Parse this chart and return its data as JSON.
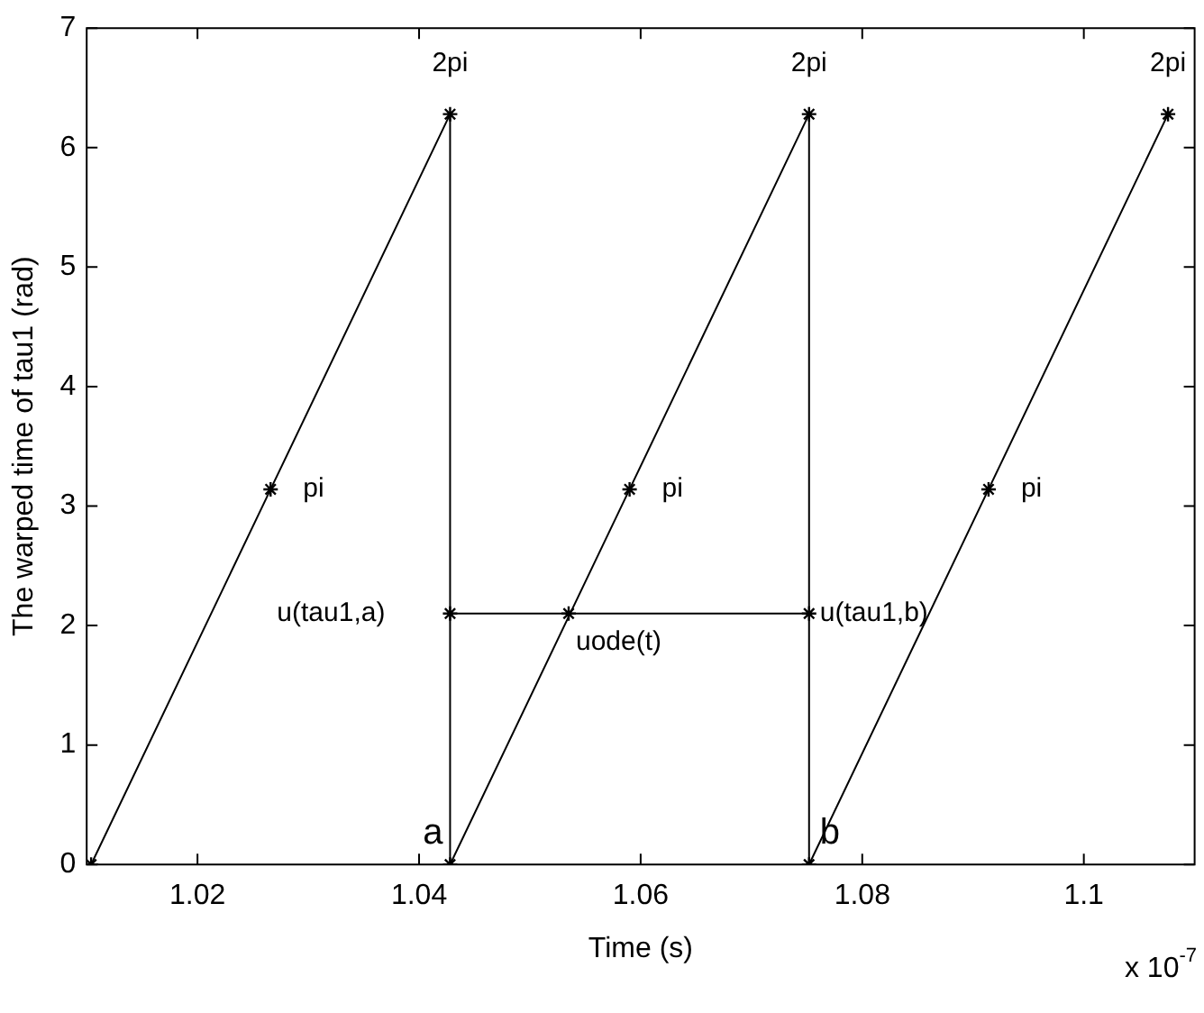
{
  "chart_data": {
    "type": "line",
    "xlabel": "Time (s)",
    "ylabel": "The warped time of tau1 (rad)",
    "xlim": [
      1.01,
      1.11
    ],
    "xticks": [
      1.02,
      1.04,
      1.06,
      1.08,
      1.1
    ],
    "ylim": [
      0,
      7
    ],
    "yticks": [
      0,
      1,
      2,
      3,
      4,
      5,
      6,
      7
    ],
    "grid": false,
    "legend": false,
    "marker": "cross",
    "line_style": "solid",
    "series": [
      {
        "color": "#000000",
        "x": [
          1.0104,
          1.0266,
          1.0428,
          1.0428,
          1.059,
          1.0752,
          1.0752,
          1.0914,
          1.1076
        ],
        "values": [
          0,
          3.14,
          6.28,
          0,
          3.14,
          6.28,
          0,
          3.14,
          6.28
        ]
      },
      {
        "color": "#000000",
        "x": [
          1.0428,
          1.0535,
          1.0752
        ],
        "values": [
          2.1,
          2.1,
          2.1
        ]
      }
    ],
    "annotations": [
      {
        "text": "2pi",
        "x": 1.0428,
        "y": 6.28
      },
      {
        "text": "2pi",
        "x": 1.0752,
        "y": 6.28
      },
      {
        "text": "2pi",
        "x": 1.1076,
        "y": 6.28
      },
      {
        "text": "pi",
        "x": 1.0266,
        "y": 3.14
      },
      {
        "text": "pi",
        "x": 1.059,
        "y": 3.14
      },
      {
        "text": "pi",
        "x": 1.0914,
        "y": 3.14
      },
      {
        "text": "u(tau1,a)",
        "x": 1.0428,
        "y": 2.1
      },
      {
        "text": "uode(t)",
        "x": 1.0535,
        "y": 2.1
      },
      {
        "text": "u(tau1,b)",
        "x": 1.0752,
        "y": 2.1
      },
      {
        "text": "a",
        "x": 1.0428,
        "y": 0
      },
      {
        "text": "b",
        "x": 1.0752,
        "y": 0
      },
      "x 10$^{-7}$"
    ]
  }
}
